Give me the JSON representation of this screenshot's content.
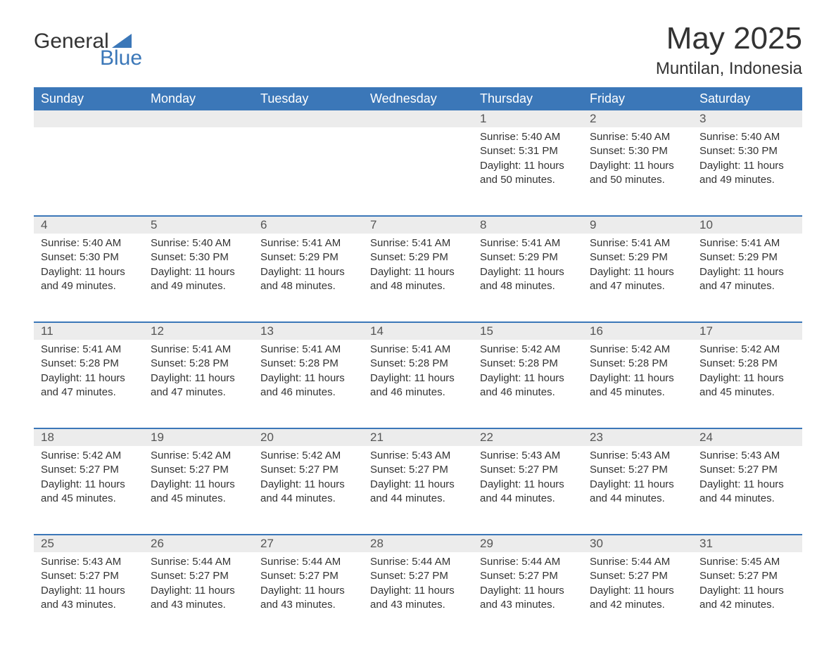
{
  "logo": {
    "word1": "General",
    "word2": "Blue",
    "tri_color": "#3b77b8"
  },
  "title": "May 2025",
  "location": "Muntilan, Indonesia",
  "colors": {
    "header_bg": "#3b77b8",
    "header_text": "#ffffff",
    "daynum_bg": "#ececec",
    "daynum_text": "#555555",
    "border": "#3b77b8",
    "body_text": "#333333",
    "page_bg": "#ffffff"
  },
  "columns": [
    "Sunday",
    "Monday",
    "Tuesday",
    "Wednesday",
    "Thursday",
    "Friday",
    "Saturday"
  ],
  "weeks": [
    {
      "days": [
        {
          "n": "",
          "sunrise": "",
          "sunset": "",
          "daylight": ""
        },
        {
          "n": "",
          "sunrise": "",
          "sunset": "",
          "daylight": ""
        },
        {
          "n": "",
          "sunrise": "",
          "sunset": "",
          "daylight": ""
        },
        {
          "n": "",
          "sunrise": "",
          "sunset": "",
          "daylight": ""
        },
        {
          "n": "1",
          "sunrise": "Sunrise: 5:40 AM",
          "sunset": "Sunset: 5:31 PM",
          "daylight": "Daylight: 11 hours and 50 minutes."
        },
        {
          "n": "2",
          "sunrise": "Sunrise: 5:40 AM",
          "sunset": "Sunset: 5:30 PM",
          "daylight": "Daylight: 11 hours and 50 minutes."
        },
        {
          "n": "3",
          "sunrise": "Sunrise: 5:40 AM",
          "sunset": "Sunset: 5:30 PM",
          "daylight": "Daylight: 11 hours and 49 minutes."
        }
      ]
    },
    {
      "days": [
        {
          "n": "4",
          "sunrise": "Sunrise: 5:40 AM",
          "sunset": "Sunset: 5:30 PM",
          "daylight": "Daylight: 11 hours and 49 minutes."
        },
        {
          "n": "5",
          "sunrise": "Sunrise: 5:40 AM",
          "sunset": "Sunset: 5:30 PM",
          "daylight": "Daylight: 11 hours and 49 minutes."
        },
        {
          "n": "6",
          "sunrise": "Sunrise: 5:41 AM",
          "sunset": "Sunset: 5:29 PM",
          "daylight": "Daylight: 11 hours and 48 minutes."
        },
        {
          "n": "7",
          "sunrise": "Sunrise: 5:41 AM",
          "sunset": "Sunset: 5:29 PM",
          "daylight": "Daylight: 11 hours and 48 minutes."
        },
        {
          "n": "8",
          "sunrise": "Sunrise: 5:41 AM",
          "sunset": "Sunset: 5:29 PM",
          "daylight": "Daylight: 11 hours and 48 minutes."
        },
        {
          "n": "9",
          "sunrise": "Sunrise: 5:41 AM",
          "sunset": "Sunset: 5:29 PM",
          "daylight": "Daylight: 11 hours and 47 minutes."
        },
        {
          "n": "10",
          "sunrise": "Sunrise: 5:41 AM",
          "sunset": "Sunset: 5:29 PM",
          "daylight": "Daylight: 11 hours and 47 minutes."
        }
      ]
    },
    {
      "days": [
        {
          "n": "11",
          "sunrise": "Sunrise: 5:41 AM",
          "sunset": "Sunset: 5:28 PM",
          "daylight": "Daylight: 11 hours and 47 minutes."
        },
        {
          "n": "12",
          "sunrise": "Sunrise: 5:41 AM",
          "sunset": "Sunset: 5:28 PM",
          "daylight": "Daylight: 11 hours and 47 minutes."
        },
        {
          "n": "13",
          "sunrise": "Sunrise: 5:41 AM",
          "sunset": "Sunset: 5:28 PM",
          "daylight": "Daylight: 11 hours and 46 minutes."
        },
        {
          "n": "14",
          "sunrise": "Sunrise: 5:41 AM",
          "sunset": "Sunset: 5:28 PM",
          "daylight": "Daylight: 11 hours and 46 minutes."
        },
        {
          "n": "15",
          "sunrise": "Sunrise: 5:42 AM",
          "sunset": "Sunset: 5:28 PM",
          "daylight": "Daylight: 11 hours and 46 minutes."
        },
        {
          "n": "16",
          "sunrise": "Sunrise: 5:42 AM",
          "sunset": "Sunset: 5:28 PM",
          "daylight": "Daylight: 11 hours and 45 minutes."
        },
        {
          "n": "17",
          "sunrise": "Sunrise: 5:42 AM",
          "sunset": "Sunset: 5:28 PM",
          "daylight": "Daylight: 11 hours and 45 minutes."
        }
      ]
    },
    {
      "days": [
        {
          "n": "18",
          "sunrise": "Sunrise: 5:42 AM",
          "sunset": "Sunset: 5:27 PM",
          "daylight": "Daylight: 11 hours and 45 minutes."
        },
        {
          "n": "19",
          "sunrise": "Sunrise: 5:42 AM",
          "sunset": "Sunset: 5:27 PM",
          "daylight": "Daylight: 11 hours and 45 minutes."
        },
        {
          "n": "20",
          "sunrise": "Sunrise: 5:42 AM",
          "sunset": "Sunset: 5:27 PM",
          "daylight": "Daylight: 11 hours and 44 minutes."
        },
        {
          "n": "21",
          "sunrise": "Sunrise: 5:43 AM",
          "sunset": "Sunset: 5:27 PM",
          "daylight": "Daylight: 11 hours and 44 minutes."
        },
        {
          "n": "22",
          "sunrise": "Sunrise: 5:43 AM",
          "sunset": "Sunset: 5:27 PM",
          "daylight": "Daylight: 11 hours and 44 minutes."
        },
        {
          "n": "23",
          "sunrise": "Sunrise: 5:43 AM",
          "sunset": "Sunset: 5:27 PM",
          "daylight": "Daylight: 11 hours and 44 minutes."
        },
        {
          "n": "24",
          "sunrise": "Sunrise: 5:43 AM",
          "sunset": "Sunset: 5:27 PM",
          "daylight": "Daylight: 11 hours and 44 minutes."
        }
      ]
    },
    {
      "days": [
        {
          "n": "25",
          "sunrise": "Sunrise: 5:43 AM",
          "sunset": "Sunset: 5:27 PM",
          "daylight": "Daylight: 11 hours and 43 minutes."
        },
        {
          "n": "26",
          "sunrise": "Sunrise: 5:44 AM",
          "sunset": "Sunset: 5:27 PM",
          "daylight": "Daylight: 11 hours and 43 minutes."
        },
        {
          "n": "27",
          "sunrise": "Sunrise: 5:44 AM",
          "sunset": "Sunset: 5:27 PM",
          "daylight": "Daylight: 11 hours and 43 minutes."
        },
        {
          "n": "28",
          "sunrise": "Sunrise: 5:44 AM",
          "sunset": "Sunset: 5:27 PM",
          "daylight": "Daylight: 11 hours and 43 minutes."
        },
        {
          "n": "29",
          "sunrise": "Sunrise: 5:44 AM",
          "sunset": "Sunset: 5:27 PM",
          "daylight": "Daylight: 11 hours and 43 minutes."
        },
        {
          "n": "30",
          "sunrise": "Sunrise: 5:44 AM",
          "sunset": "Sunset: 5:27 PM",
          "daylight": "Daylight: 11 hours and 42 minutes."
        },
        {
          "n": "31",
          "sunrise": "Sunrise: 5:45 AM",
          "sunset": "Sunset: 5:27 PM",
          "daylight": "Daylight: 11 hours and 42 minutes."
        }
      ]
    }
  ]
}
